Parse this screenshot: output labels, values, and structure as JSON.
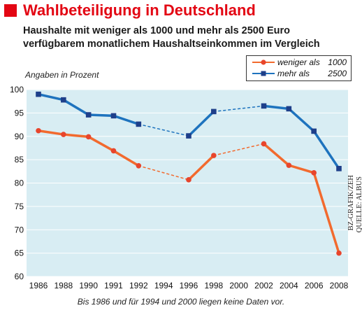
{
  "header": {
    "title": "Wahlbeteiligung in Deutschland",
    "subtitle_line1": "Haushalte mit weniger als 1000 und mehr als 2500 Euro",
    "subtitle_line2": "verfügbarem monatlichem Haushaltseinkommen im Vergleich",
    "unit_note": "Angaben in Prozent"
  },
  "legend": {
    "items": [
      {
        "name": "weniger als",
        "value": "1000",
        "color": "#e8452c",
        "marker": "circle"
      },
      {
        "name": "mehr als",
        "value": "2500",
        "color": "#1e5aa8",
        "marker": "square"
      }
    ]
  },
  "footnote": "Bis 1986 und für 1994 und 2000 liegen keine Daten vor.",
  "credits": {
    "source": "QUELLE: ALBUS",
    "graphic": "BZ-GRAFIK/ZEH"
  },
  "colors": {
    "title_red": "#e30613",
    "plot_bg": "#d8edf3",
    "low_income_line": "#f26a2e",
    "low_income_marker": "#e8452c",
    "high_income_line": "#1e73be",
    "high_income_marker": "#1e3f8a"
  },
  "chart_data": {
    "type": "line",
    "x": [
      "1986",
      "1988",
      "1990",
      "1991",
      "1992",
      "1994",
      "1996",
      "1998",
      "2000",
      "2002",
      "2004",
      "2006",
      "2008"
    ],
    "ylim": [
      60,
      100
    ],
    "yticks": [
      60,
      65,
      70,
      75,
      80,
      85,
      90,
      95,
      100
    ],
    "grid": "horizontal",
    "legend_position": "top-right",
    "series": [
      {
        "name": "weniger als 1000",
        "values": [
          91.2,
          90.4,
          89.9,
          86.9,
          83.7,
          null,
          80.7,
          85.9,
          null,
          88.4,
          83.8,
          82.2,
          65.0
        ]
      },
      {
        "name": "mehr als 2500",
        "values": [
          99.0,
          97.8,
          94.6,
          94.4,
          92.6,
          null,
          90.1,
          95.3,
          null,
          96.5,
          95.9,
          91.1,
          83.1
        ]
      }
    ]
  }
}
